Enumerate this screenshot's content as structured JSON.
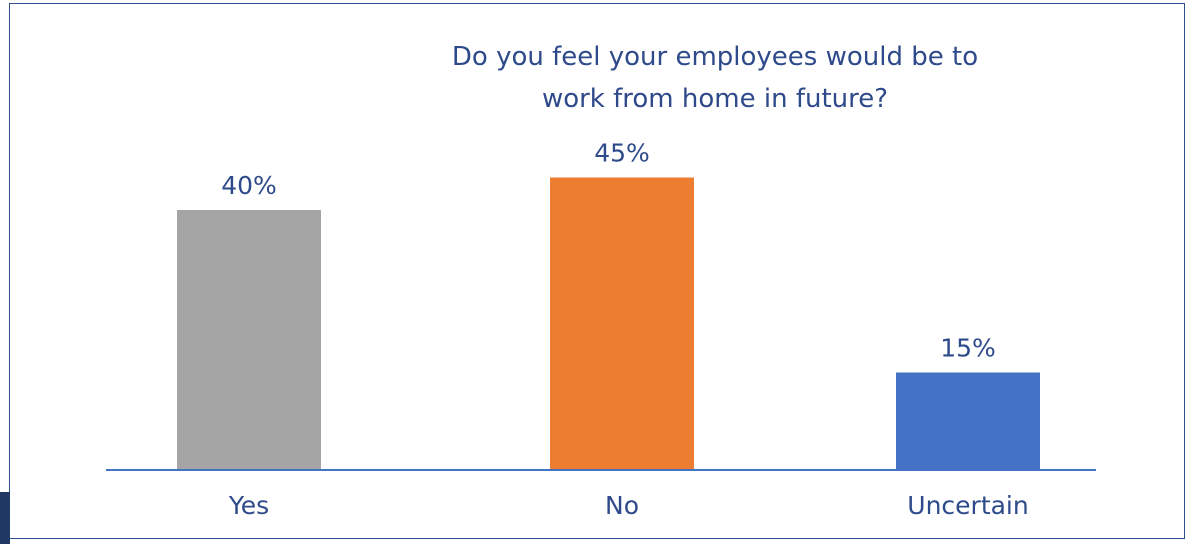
{
  "chart_data": {
    "type": "bar",
    "title_lines": [
      "Do you feel your employees would be to",
      "work from home in future?"
    ],
    "categories": [
      "Yes",
      "No",
      "Uncertain"
    ],
    "values": [
      40,
      45,
      15
    ],
    "value_labels": [
      "40%",
      "45%",
      "15%"
    ],
    "colors": [
      "#a5a5a5",
      "#ed7d31",
      "#4472c4"
    ],
    "axis_color": "#4472c4",
    "ylim": [
      0,
      50
    ],
    "grid": false,
    "legend": "none"
  }
}
